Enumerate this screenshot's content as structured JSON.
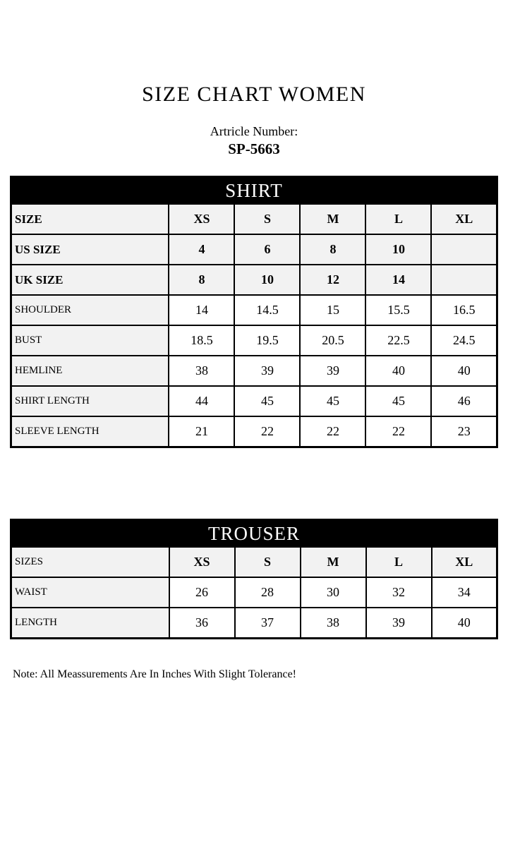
{
  "header": {
    "title": "SIZE CHART WOMEN",
    "article_label": "Artricle Number:",
    "article_number": "SP-5663"
  },
  "shirt_table": {
    "title": "SHIRT",
    "rows": [
      {
        "label": "SIZE",
        "values": [
          "XS",
          "S",
          "M",
          "L",
          "XL"
        ],
        "variant": "emphasis"
      },
      {
        "label": "US SIZE",
        "values": [
          "4",
          "6",
          "8",
          "10",
          ""
        ],
        "variant": "emphasis"
      },
      {
        "label": "UK SIZE",
        "values": [
          "8",
          "10",
          "12",
          "14",
          ""
        ],
        "variant": "emphasis"
      },
      {
        "label": "SHOULDER",
        "values": [
          "14",
          "14.5",
          "15",
          "15.5",
          "16.5"
        ],
        "variant": "plain"
      },
      {
        "label": "BUST",
        "values": [
          "18.5",
          "19.5",
          "20.5",
          "22.5",
          "24.5"
        ],
        "variant": "plain"
      },
      {
        "label": "HEMLINE",
        "values": [
          "38",
          "39",
          "39",
          "40",
          "40"
        ],
        "variant": "plain"
      },
      {
        "label": "SHIRT LENGTH",
        "values": [
          "44",
          "45",
          "45",
          "45",
          "46"
        ],
        "variant": "plain"
      },
      {
        "label": "SLEEVE LENGTH",
        "values": [
          "21",
          "22",
          "22",
          "22",
          "23"
        ],
        "variant": "plain"
      }
    ]
  },
  "trouser_table": {
    "title": "TROUSER",
    "rows": [
      {
        "label": "SIZES",
        "values": [
          "XS",
          "S",
          "M",
          "L",
          "XL"
        ],
        "variant": "emphasis-values"
      },
      {
        "label": "WAIST",
        "values": [
          "26",
          "28",
          "30",
          "32",
          "34"
        ],
        "variant": "plain"
      },
      {
        "label": "LENGTH",
        "values": [
          "36",
          "37",
          "38",
          "39",
          "40"
        ],
        "variant": "plain"
      }
    ]
  },
  "note": "Note: All Meassurements Are In Inches With Slight Tolerance!",
  "colors": {
    "table_header_bg": "#000000",
    "table_header_text": "#ffffff",
    "label_cell_bg": "#f2f2f2",
    "border": "#000000",
    "page_bg": "#ffffff",
    "text": "#000000"
  }
}
